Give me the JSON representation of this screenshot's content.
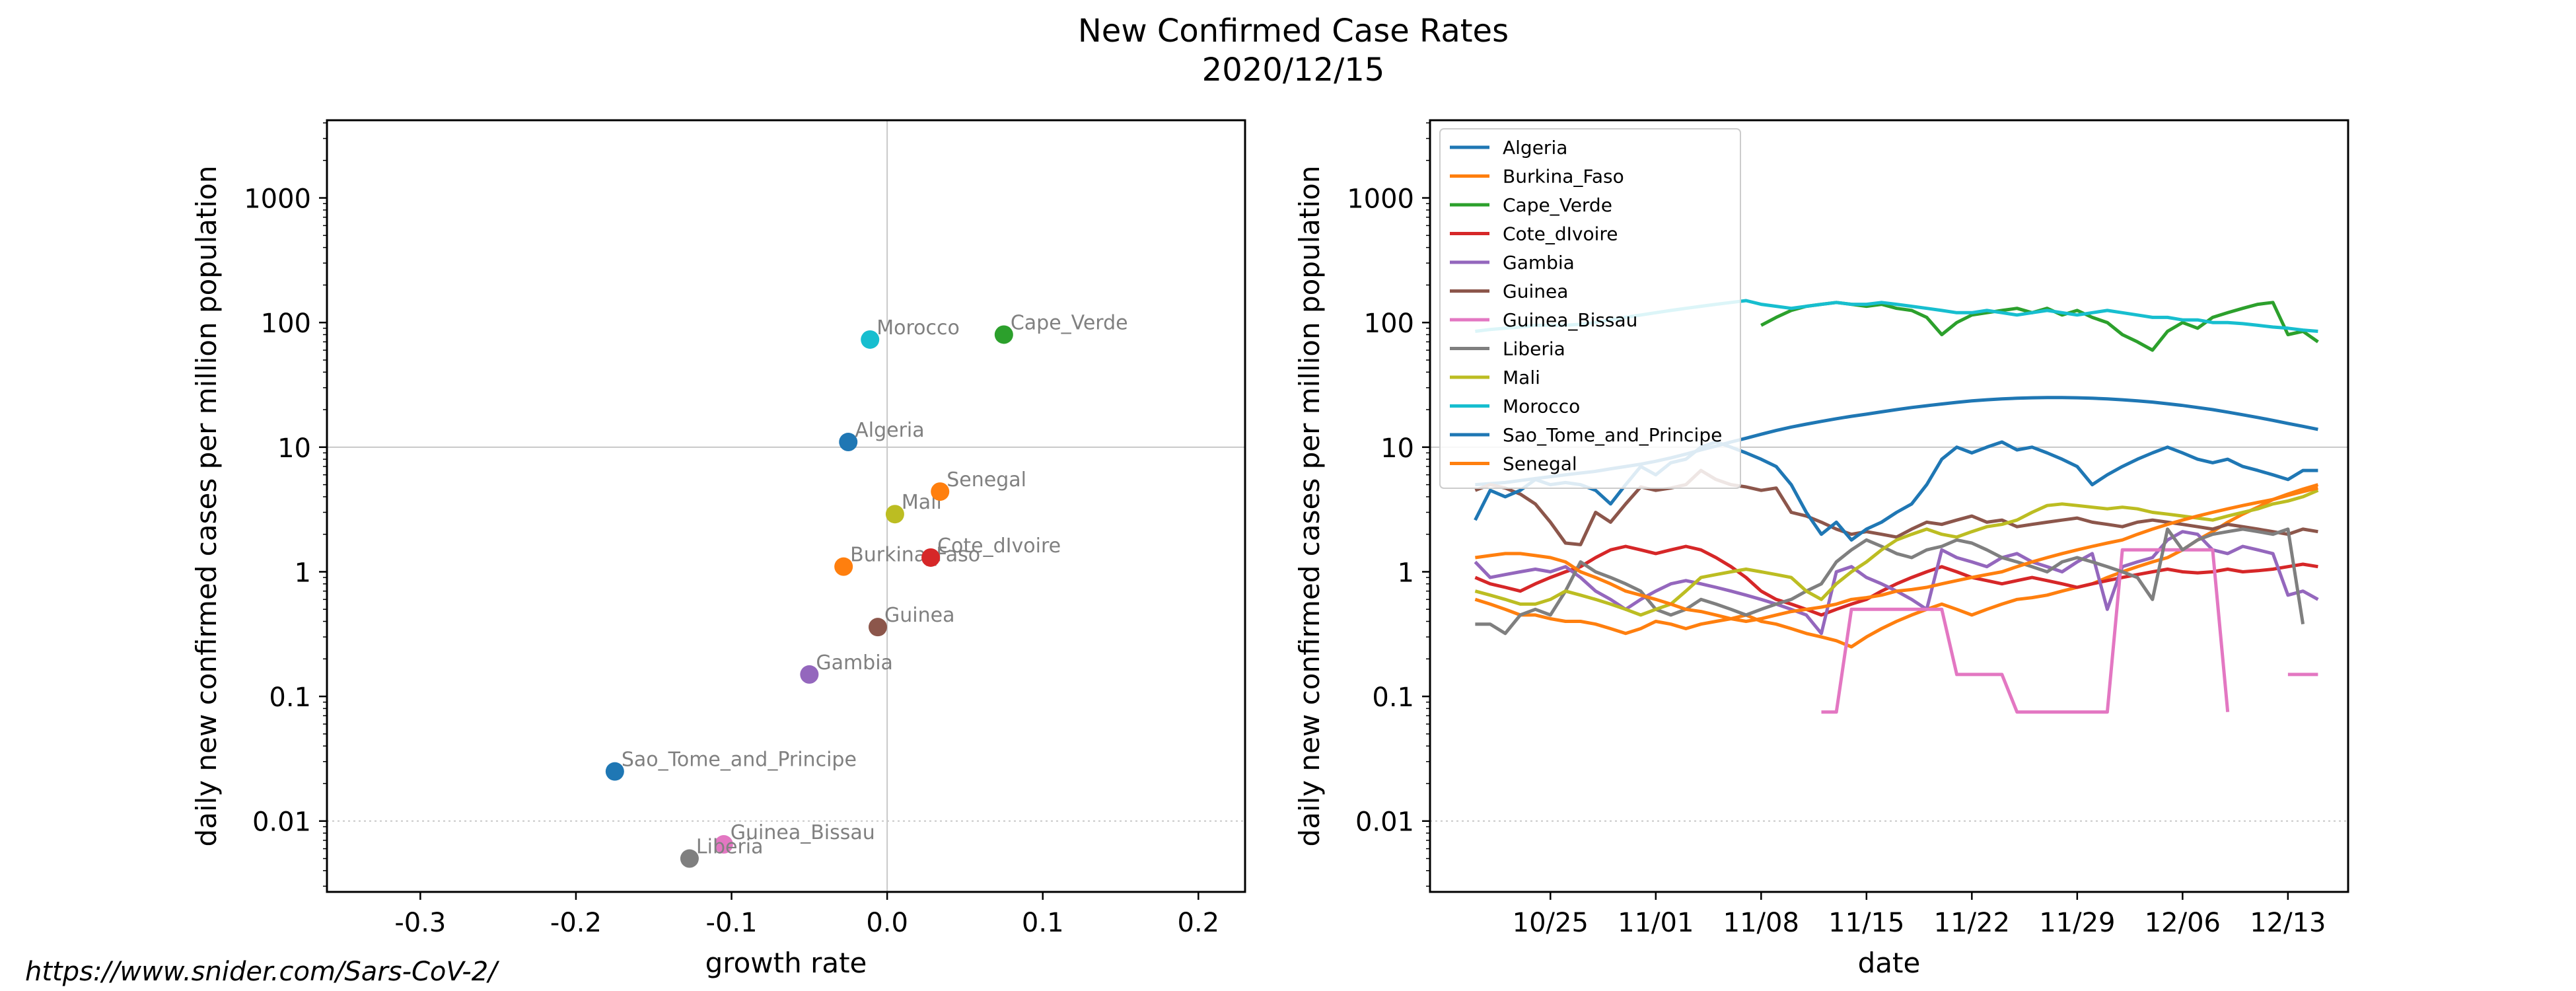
{
  "figure": {
    "title_line1": "New Confirmed Case Rates",
    "title_line2": "2020/12/15",
    "footer_url": "https://www.snider.com/Sars-CoV-2/"
  },
  "chart_data": [
    {
      "type": "scatter",
      "title": "",
      "xlabel": "growth rate",
      "ylabel": "daily new confirmed cases per million population",
      "xlim": [
        -0.36,
        0.23
      ],
      "ylim": [
        0.0027,
        4200
      ],
      "yscale": "log",
      "xticks": [
        -0.3,
        -0.2,
        -0.1,
        0.0,
        0.1,
        0.2
      ],
      "xtick_labels": [
        "-0.3",
        "-0.2",
        "-0.1",
        "0.0",
        "0.1",
        "0.2"
      ],
      "yticks": [
        0.01,
        0.1,
        1,
        10,
        100,
        1000
      ],
      "ytick_labels": [
        "0.01",
        "0.1",
        "1",
        "10",
        "100",
        "1000"
      ],
      "reference_lines": {
        "x": 0,
        "y_solid": 10,
        "y_dotted": 0.01
      },
      "points": [
        {
          "label": "Algeria",
          "x": -0.025,
          "y": 11,
          "color": "#1f77b4"
        },
        {
          "label": "Burkina_Faso",
          "x": -0.028,
          "y": 1.1,
          "color": "#ff7f0e"
        },
        {
          "label": "Cape_Verde",
          "x": 0.075,
          "y": 80,
          "color": "#2ca02c"
        },
        {
          "label": "Cote_dIvoire",
          "x": 0.028,
          "y": 1.3,
          "color": "#d62728"
        },
        {
          "label": "Gambia",
          "x": -0.05,
          "y": 0.15,
          "color": "#9467bd"
        },
        {
          "label": "Guinea",
          "x": -0.006,
          "y": 0.36,
          "color": "#8c564b"
        },
        {
          "label": "Guinea_Bissau",
          "x": -0.105,
          "y": 0.0065,
          "color": "#e377c2"
        },
        {
          "label": "Liberia",
          "x": -0.127,
          "y": 0.005,
          "color": "#7f7f7f"
        },
        {
          "label": "Mali",
          "x": 0.005,
          "y": 2.9,
          "color": "#bcbd22"
        },
        {
          "label": "Morocco",
          "x": -0.011,
          "y": 73,
          "color": "#17becf"
        },
        {
          "label": "Sao_Tome_and_Principe",
          "x": -0.175,
          "y": 0.025,
          "color": "#1f77b4"
        },
        {
          "label": "Senegal",
          "x": 0.034,
          "y": 4.4,
          "color": "#ff7f0e"
        }
      ]
    },
    {
      "type": "line",
      "title": "",
      "xlabel": "date",
      "ylabel": "daily new confirmed cases per million population",
      "x_start": "2020-10-20",
      "x_end": "2020-12-15",
      "xlim": [
        "2020-10-17",
        "2020-12-17"
      ],
      "ylim": [
        0.0027,
        4200
      ],
      "yscale": "log",
      "xticks": [
        "2020-10-25",
        "2020-11-01",
        "2020-11-08",
        "2020-11-15",
        "2020-11-22",
        "2020-11-29",
        "2020-12-06",
        "2020-12-13"
      ],
      "xtick_labels": [
        "10/25",
        "11/01",
        "11/08",
        "11/15",
        "11/22",
        "11/29",
        "12/06",
        "12/13"
      ],
      "yticks": [
        0.01,
        0.1,
        1,
        10,
        100,
        1000
      ],
      "ytick_labels": [
        "0.01",
        "0.1",
        "1",
        "10",
        "100",
        "1000"
      ],
      "reference_lines": {
        "y_solid": 10,
        "y_dotted": 0.01
      },
      "legend_position": "upper-left",
      "series": [
        {
          "name": "Algeria",
          "color": "#1f77b4",
          "values": [
            5,
            5.1,
            5.2,
            5.4,
            5.6,
            5.8,
            6,
            6.2,
            6.4,
            6.7,
            7,
            7.3,
            7.7,
            8.2,
            8.8,
            9.5,
            10.2,
            11,
            11.8,
            12.7,
            13.6,
            14.5,
            15.3,
            16.1,
            16.9,
            17.7,
            18.4,
            19.2,
            20,
            20.8,
            21.5,
            22.2,
            22.9,
            23.5,
            24,
            24.4,
            24.7,
            24.9,
            25,
            25,
            24.9,
            24.7,
            24.4,
            24,
            23.5,
            23,
            22.3,
            21.6,
            20.8,
            20,
            19.1,
            18.2,
            17.3,
            16.4,
            15.5,
            14.7,
            13.9
          ]
        },
        {
          "name": "Burkina_Faso",
          "color": "#ff7f0e",
          "values": [
            0.6,
            0.55,
            0.5,
            0.45,
            0.45,
            0.42,
            0.4,
            0.4,
            0.38,
            0.35,
            0.32,
            0.35,
            0.4,
            0.38,
            0.35,
            0.38,
            0.4,
            0.42,
            0.45,
            0.4,
            0.38,
            0.35,
            0.32,
            0.3,
            0.28,
            0.25,
            0.3,
            0.35,
            0.4,
            0.45,
            0.5,
            0.55,
            0.5,
            0.45,
            0.5,
            0.55,
            0.6,
            0.62,
            0.65,
            0.7,
            0.75,
            0.8,
            0.9,
            1,
            1.1,
            1.2,
            1.3,
            1.5,
            1.8,
            2.1,
            2.5,
            2.9,
            3.3,
            3.8,
            4.2,
            4.6,
            5
          ]
        },
        {
          "name": "Cape_Verde",
          "color": "#2ca02c",
          "values": [
            null,
            null,
            null,
            null,
            null,
            null,
            null,
            null,
            null,
            null,
            null,
            null,
            null,
            null,
            null,
            null,
            null,
            null,
            null,
            95,
            110,
            125,
            135,
            140,
            145,
            140,
            135,
            140,
            130,
            125,
            110,
            80,
            100,
            115,
            120,
            125,
            130,
            120,
            130,
            115,
            125,
            110,
            100,
            80,
            70,
            60,
            85,
            100,
            90,
            110,
            120,
            130,
            140,
            145,
            80,
            85,
            70
          ]
        },
        {
          "name": "Cote_dIvoire",
          "color": "#d62728",
          "values": [
            0.9,
            0.8,
            0.75,
            0.7,
            0.8,
            0.9,
            1,
            1.1,
            1.3,
            1.5,
            1.6,
            1.5,
            1.4,
            1.5,
            1.6,
            1.5,
            1.3,
            1.1,
            0.9,
            0.7,
            0.6,
            0.55,
            0.5,
            0.45,
            0.5,
            0.55,
            0.6,
            0.7,
            0.8,
            0.9,
            1,
            1.1,
            1,
            0.9,
            0.85,
            0.8,
            0.85,
            0.9,
            0.85,
            0.8,
            0.75,
            0.8,
            0.85,
            0.9,
            0.95,
            1,
            1.05,
            1,
            0.98,
            1,
            1.05,
            1,
            1.02,
            1.05,
            1.1,
            1.15,
            1.1
          ]
        },
        {
          "name": "Gambia",
          "color": "#9467bd",
          "values": [
            1.2,
            0.9,
            0.95,
            1,
            1.05,
            1,
            1.1,
            0.9,
            0.7,
            0.6,
            0.5,
            0.6,
            0.7,
            0.8,
            0.85,
            0.8,
            0.75,
            0.7,
            0.65,
            0.6,
            0.55,
            0.5,
            0.45,
            0.32,
            1,
            1.1,
            0.9,
            0.8,
            0.7,
            0.6,
            0.5,
            1.5,
            1.3,
            1.2,
            1.1,
            1.3,
            1.4,
            1.2,
            1.1,
            1,
            1.2,
            1.4,
            0.5,
            1.1,
            1.2,
            1.3,
            1.8,
            2.1,
            2,
            1.5,
            1.4,
            1.6,
            1.5,
            1.4,
            0.65,
            0.7,
            0.6
          ]
        },
        {
          "name": "Guinea",
          "color": "#8c564b",
          "values": [
            4.5,
            5,
            4.7,
            4.2,
            3.5,
            2.5,
            1.7,
            1.65,
            3,
            2.5,
            3.5,
            4.8,
            4.5,
            4.7,
            5,
            6.5,
            5.5,
            5,
            4.8,
            4.5,
            4.7,
            3,
            2.8,
            2.5,
            2.2,
            2,
            2.1,
            2,
            1.9,
            2.2,
            2.5,
            2.4,
            2.6,
            2.8,
            2.5,
            2.6,
            2.3,
            2.4,
            2.5,
            2.6,
            2.7,
            2.5,
            2.4,
            2.3,
            2.5,
            2.6,
            2.5,
            2.4,
            2.3,
            2.2,
            2.4,
            2.3,
            2.2,
            2.1,
            2,
            2.2,
            2.1
          ]
        },
        {
          "name": "Guinea_Bissau",
          "color": "#e377c2",
          "values": [
            null,
            null,
            null,
            null,
            null,
            null,
            null,
            null,
            null,
            null,
            null,
            null,
            null,
            null,
            null,
            null,
            null,
            null,
            null,
            null,
            null,
            null,
            null,
            0.075,
            0.075,
            0.5,
            0.5,
            0.5,
            0.5,
            0.5,
            0.5,
            0.5,
            0.15,
            0.15,
            0.15,
            0.15,
            0.075,
            0.075,
            0.075,
            0.075,
            0.075,
            0.075,
            0.075,
            1.5,
            1.5,
            1.5,
            1.5,
            1.5,
            1.5,
            1.5,
            0.075,
            null,
            null,
            null,
            0.15,
            0.15,
            0.15
          ]
        },
        {
          "name": "Liberia",
          "color": "#7f7f7f",
          "values": [
            0.38,
            0.38,
            0.32,
            0.45,
            0.5,
            0.45,
            0.7,
            1.2,
            1,
            0.9,
            0.8,
            0.7,
            0.5,
            0.45,
            0.5,
            0.6,
            0.55,
            0.5,
            0.45,
            0.5,
            0.55,
            0.6,
            0.7,
            0.8,
            1.2,
            1.5,
            1.8,
            1.6,
            1.4,
            1.3,
            1.5,
            1.6,
            1.8,
            1.7,
            1.5,
            1.3,
            1.2,
            1.1,
            1,
            1.2,
            1.3,
            1.2,
            1.1,
            1,
            0.9,
            0.6,
            2.2,
            1.5,
            1.8,
            2,
            2.1,
            2.2,
            2.1,
            2,
            2.2,
            0.38,
            null
          ]
        },
        {
          "name": "Mali",
          "color": "#bcbd22",
          "values": [
            0.7,
            0.65,
            0.6,
            0.55,
            0.55,
            0.6,
            0.7,
            0.65,
            0.6,
            0.55,
            0.5,
            0.45,
            0.5,
            0.55,
            0.7,
            0.9,
            0.95,
            1,
            1.05,
            1,
            0.95,
            0.9,
            0.7,
            0.6,
            0.8,
            1,
            1.2,
            1.5,
            1.8,
            2,
            2.2,
            2,
            1.9,
            2.1,
            2.3,
            2.4,
            2.6,
            3,
            3.4,
            3.5,
            3.4,
            3.3,
            3.2,
            3.3,
            3.2,
            3,
            2.9,
            2.8,
            2.7,
            2.6,
            2.8,
            3,
            3.2,
            3.5,
            3.7,
            4,
            4.5
          ]
        },
        {
          "name": "Morocco",
          "color": "#17becf",
          "values": [
            85,
            88,
            90,
            92,
            95,
            95,
            95,
            97,
            100,
            105,
            110,
            115,
            120,
            125,
            130,
            135,
            140,
            145,
            150,
            140,
            135,
            130,
            135,
            140,
            145,
            140,
            140,
            145,
            140,
            135,
            130,
            125,
            120,
            120,
            125,
            120,
            115,
            120,
            125,
            120,
            115,
            120,
            125,
            120,
            115,
            110,
            110,
            105,
            105,
            100,
            100,
            98,
            95,
            92,
            90,
            87,
            85
          ]
        },
        {
          "name": "Sao_Tome_and_Principe",
          "color": "#1f77b4",
          "values": [
            2.6,
            4.5,
            4,
            4.5,
            5.5,
            5,
            5.2,
            5,
            4.5,
            3.5,
            5,
            7,
            6,
            7.5,
            8,
            10,
            11,
            10,
            9,
            8,
            7,
            5,
            3,
            2,
            2.5,
            1.8,
            2.2,
            2.5,
            3,
            3.5,
            5,
            8,
            10,
            9,
            10,
            11,
            9.5,
            10,
            9,
            8,
            7,
            5,
            6,
            7,
            8,
            9,
            10,
            9,
            8,
            7.5,
            8,
            7,
            6.5,
            6,
            5.5,
            6.5,
            6.5
          ]
        },
        {
          "name": "Senegal",
          "color": "#ff7f0e",
          "values": [
            1.3,
            1.35,
            1.4,
            1.4,
            1.35,
            1.3,
            1.2,
            1,
            0.9,
            0.8,
            0.7,
            0.65,
            0.6,
            0.55,
            0.5,
            0.48,
            0.45,
            0.42,
            0.4,
            0.42,
            0.45,
            0.48,
            0.5,
            0.52,
            0.55,
            0.6,
            0.62,
            0.65,
            0.7,
            0.72,
            0.75,
            0.8,
            0.85,
            0.9,
            0.95,
            1,
            1.1,
            1.2,
            1.3,
            1.4,
            1.5,
            1.6,
            1.7,
            1.8,
            2,
            2.2,
            2.4,
            2.6,
            2.8,
            3,
            3.2,
            3.4,
            3.6,
            3.8,
            4.1,
            4.4,
            4.7
          ]
        }
      ]
    }
  ]
}
